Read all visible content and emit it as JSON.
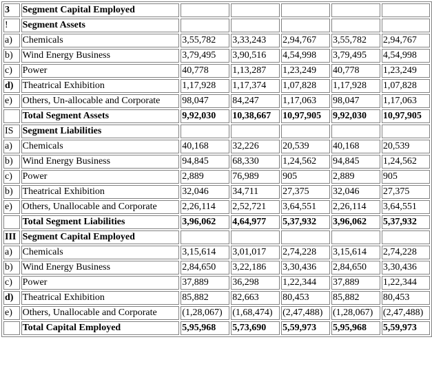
{
  "rows": [
    {
      "id": "3",
      "label": "Segment Capital Employed",
      "values": [
        "",
        "",
        "",
        "",
        ""
      ],
      "bold": true
    },
    {
      "id": "!",
      "label": "Segment Assets",
      "values": [
        "",
        "",
        "",
        "",
        ""
      ],
      "bold": false,
      "label_bold": true
    },
    {
      "id": "a)",
      "label": "Chemicals",
      "values": [
        "3,55,782",
        "3,33,243",
        "2,94,767",
        "3,55,782",
        "2,94,767"
      ]
    },
    {
      "id": "b)",
      "label": "Wind Energy Business",
      "values": [
        "3,79,495",
        "3,90,516",
        "4,54,998",
        "3,79,495",
        "4,54,998"
      ]
    },
    {
      "id": "c)",
      "label": "Power",
      "values": [
        "40,778",
        "1,13,287",
        "1,23,249",
        "40,778",
        "1,23,249"
      ]
    },
    {
      "id": "d)",
      "label": "Theatrical Exhibition",
      "values": [
        "1,17,928",
        "1,17,374",
        "1,07,828",
        "1,17,928",
        "1,07,828"
      ],
      "id_bold": true
    },
    {
      "id": "e)",
      "label": "Others, Un-allocable and Corporate",
      "values": [
        "98,047",
        "84,247",
        "1,17,063",
        "98,047",
        "1,17,063"
      ]
    },
    {
      "id": "",
      "label": "Total Segment Assets",
      "values": [
        "9,92,030",
        "10,38,667",
        "10,97,905",
        "9,92,030",
        "10,97,905"
      ],
      "bold": true
    },
    {
      "id": "IS",
      "label": "Segment Liabilities",
      "values": [
        "",
        "",
        "",
        "",
        ""
      ],
      "label_bold": true
    },
    {
      "id": "a)",
      "label": "Chemicals",
      "values": [
        "40,168",
        "32,226",
        "20,539",
        "40,168",
        "20,539"
      ]
    },
    {
      "id": "b)",
      "label": "Wind Energy Business",
      "values": [
        "94,845",
        "68,330",
        "1,24,562",
        "94,845",
        "1,24,562"
      ]
    },
    {
      "id": "c)",
      "label": "Power",
      "values": [
        "2,889",
        "76,989",
        "905",
        "2,889",
        "905"
      ]
    },
    {
      "id": "b)",
      "label": "Theatrical Exhibition",
      "values": [
        "32,046",
        "34,711",
        "27,375",
        "32,046",
        "27,375"
      ]
    },
    {
      "id": "e)",
      "label": "Others, Unallocable and Corporate",
      "values": [
        "2,26,114",
        "2,52,721",
        "3,64,551",
        "2,26,114",
        "3,64,551"
      ]
    },
    {
      "id": "",
      "label": "Total Segment Liabilities",
      "values": [
        "3,96,062",
        "4,64,977",
        "5,37,932",
        "3,96,062",
        "5,37,932"
      ],
      "bold": true
    },
    {
      "id": "III",
      "label": "Segment Capital Employed",
      "values": [
        "",
        "",
        "",
        "",
        ""
      ],
      "bold": true
    },
    {
      "id": "a)",
      "label": "Chemicals",
      "values": [
        "3,15,614",
        "3,01,017",
        "2,74,228",
        "3,15,614",
        "2,74,228"
      ]
    },
    {
      "id": "b)",
      "label": "Wind Energy Business",
      "values": [
        "2,84,650",
        "3,22,186",
        "3,30,436",
        "2,84,650",
        "3,30,436"
      ]
    },
    {
      "id": "c)",
      "label": "Power",
      "values": [
        "37,889",
        "36,298",
        "1,22,344",
        "37,889",
        "1,22,344"
      ]
    },
    {
      "id": "d)",
      "label": "Theatrical Exhibition",
      "values": [
        "85,882",
        "82,663",
        "80,453",
        "85,882",
        "80,453"
      ],
      "id_bold": true
    },
    {
      "id": "e)",
      "label": "Others, Unallocable and Corporate",
      "values": [
        "(1,28,067)",
        "(1,68,474)",
        "(2,47,488)",
        "(1,28,067)",
        "(2,47,488)"
      ]
    },
    {
      "id": "",
      "label": "Total Capital Employed",
      "values": [
        "5,95,968",
        "5,73,690",
        "5,59,973",
        "5,95,968",
        "5,59,973"
      ],
      "bold": true
    }
  ]
}
